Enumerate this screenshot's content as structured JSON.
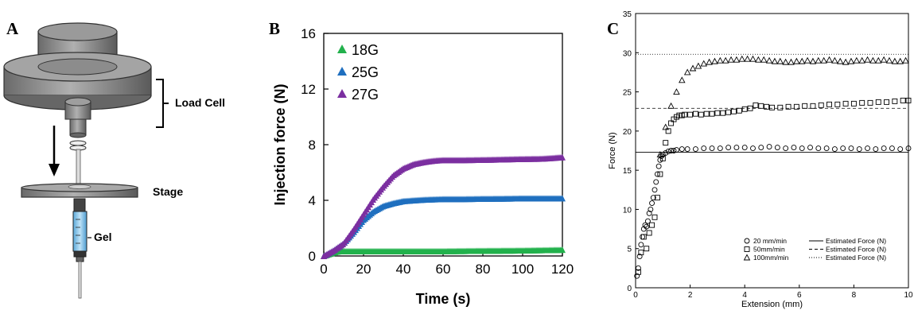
{
  "panels": {
    "a": {
      "letter": "A",
      "labels": {
        "load_cell": "Load Cell",
        "stage": "Stage",
        "gel": "Gel"
      }
    },
    "b": {
      "letter": "B"
    },
    "c": {
      "letter": "C"
    }
  },
  "chart_data": [
    {
      "id": "B",
      "type": "scatter",
      "xlabel": "Time (s)",
      "ylabel": "Injection force (N)",
      "xlim": [
        0,
        120
      ],
      "ylim": [
        0,
        16
      ],
      "xticks": [
        0,
        20,
        40,
        60,
        80,
        100,
        120
      ],
      "yticks": [
        0,
        4,
        8,
        12,
        16
      ],
      "grid": false,
      "legend": "top-left",
      "series": [
        {
          "name": "18G",
          "color": "#22b14c",
          "x": [
            0,
            3,
            6,
            8,
            10,
            20,
            40,
            60,
            80,
            100,
            120
          ],
          "y": [
            0,
            0.15,
            0.3,
            0.35,
            0.35,
            0.35,
            0.35,
            0.35,
            0.38,
            0.4,
            0.45
          ]
        },
        {
          "name": "25G",
          "color": "#1f6fbf",
          "x": [
            0,
            5,
            10,
            15,
            20,
            25,
            30,
            35,
            40,
            50,
            60,
            70,
            80,
            90,
            100,
            110,
            120
          ],
          "y": [
            0,
            0.4,
            0.9,
            1.7,
            2.6,
            3.2,
            3.6,
            3.8,
            3.95,
            4.05,
            4.1,
            4.1,
            4.12,
            4.13,
            4.15,
            4.15,
            4.15
          ]
        },
        {
          "name": "27G",
          "color": "#7b2fa0",
          "x": [
            0,
            5,
            10,
            15,
            20,
            25,
            30,
            35,
            40,
            45,
            50,
            55,
            60,
            70,
            80,
            90,
            100,
            110,
            120
          ],
          "y": [
            0,
            0.4,
            0.9,
            1.9,
            3.0,
            4.1,
            5.0,
            5.8,
            6.3,
            6.6,
            6.75,
            6.85,
            6.9,
            6.9,
            6.92,
            6.95,
            6.98,
            7.0,
            7.1
          ]
        }
      ]
    },
    {
      "id": "C",
      "type": "scatter",
      "xlabel": "Extension (mm)",
      "ylabel": "Force (N)",
      "xlim": [
        0,
        10
      ],
      "ylim": [
        0,
        35
      ],
      "xticks": [
        0,
        2,
        4,
        6,
        8,
        10
      ],
      "yticks": [
        0,
        5,
        10,
        15,
        20,
        25,
        30,
        35
      ],
      "grid": false,
      "legend": "bottom-right",
      "series": [
        {
          "name": "20 mm/min",
          "marker": "circle",
          "estimated_force": 17.3,
          "legend_line": "Estimated Force (N)",
          "line_style": "solid",
          "x": [
            0.05,
            0.1,
            0.15,
            0.2,
            0.25,
            0.3,
            0.35,
            0.4,
            0.45,
            0.5,
            0.55,
            0.6,
            0.65,
            0.7,
            0.75,
            0.8,
            0.85,
            0.9,
            0.95,
            1.0,
            1.1,
            1.2,
            1.3,
            1.4,
            1.5,
            1.7,
            1.9,
            2.2,
            2.5,
            2.8,
            3.1,
            3.4,
            3.7,
            4.0,
            4.3,
            4.6,
            4.9,
            5.2,
            5.5,
            5.8,
            6.1,
            6.4,
            6.7,
            7.0,
            7.3,
            7.6,
            7.9,
            8.2,
            8.5,
            8.8,
            9.1,
            9.4,
            9.7,
            10.0
          ],
          "y": [
            1.5,
            2.5,
            4.0,
            5.5,
            6.5,
            7.5,
            8.0,
            7.8,
            8.5,
            9.5,
            10.0,
            10.8,
            11.5,
            12.5,
            13.5,
            14.5,
            15.5,
            16.3,
            16.8,
            17.0,
            17.2,
            17.4,
            17.5,
            17.5,
            17.6,
            17.7,
            17.7,
            17.7,
            17.8,
            17.8,
            17.8,
            17.9,
            17.9,
            17.9,
            17.8,
            17.9,
            18.0,
            17.9,
            17.8,
            17.9,
            17.8,
            17.9,
            17.8,
            17.8,
            17.7,
            17.8,
            17.8,
            17.7,
            17.8,
            17.7,
            17.8,
            17.8,
            17.7,
            17.8
          ]
        },
        {
          "name": "50mm/min",
          "marker": "square",
          "estimated_force": 22.9,
          "legend_line": "Estimated Force (N)",
          "line_style": "dashed",
          "x": [
            0.1,
            0.2,
            0.3,
            0.4,
            0.5,
            0.6,
            0.7,
            0.8,
            0.9,
            1.0,
            1.1,
            1.2,
            1.3,
            1.4,
            1.5,
            1.6,
            1.7,
            1.8,
            2.0,
            2.2,
            2.4,
            2.6,
            2.8,
            3.0,
            3.2,
            3.4,
            3.6,
            3.8,
            4.0,
            4.2,
            4.4,
            4.6,
            4.8,
            5.0,
            5.3,
            5.6,
            5.9,
            6.2,
            6.5,
            6.8,
            7.1,
            7.4,
            7.7,
            8.0,
            8.3,
            8.6,
            8.9,
            9.2,
            9.5,
            9.8,
            10.0
          ],
          "y": [
            2.0,
            4.5,
            6.5,
            5.0,
            7.0,
            8.0,
            9.0,
            11.5,
            14.5,
            16.5,
            18.5,
            20.0,
            21.0,
            21.5,
            21.8,
            22.0,
            22.0,
            22.1,
            22.1,
            22.2,
            22.1,
            22.2,
            22.2,
            22.3,
            22.3,
            22.4,
            22.5,
            22.6,
            22.8,
            22.9,
            23.3,
            23.2,
            23.1,
            23.0,
            23.0,
            23.1,
            23.1,
            23.2,
            23.2,
            23.3,
            23.4,
            23.4,
            23.5,
            23.5,
            23.6,
            23.6,
            23.7,
            23.7,
            23.8,
            23.9,
            23.9
          ]
        },
        {
          "name": "100mm/min",
          "marker": "triangle",
          "estimated_force": 29.8,
          "legend_line": "Estimated Force (N)",
          "line_style": "dotted",
          "x": [
            0.9,
            1.1,
            1.3,
            1.5,
            1.7,
            1.9,
            2.1,
            2.3,
            2.5,
            2.7,
            2.9,
            3.1,
            3.3,
            3.5,
            3.7,
            3.9,
            4.1,
            4.3,
            4.5,
            4.7,
            4.9,
            5.1,
            5.3,
            5.5,
            5.7,
            5.9,
            6.1,
            6.3,
            6.5,
            6.7,
            6.9,
            7.1,
            7.3,
            7.5,
            7.7,
            7.9,
            8.1,
            8.3,
            8.5,
            8.7,
            8.9,
            9.1,
            9.3,
            9.5,
            9.7,
            9.9
          ],
          "y": [
            17.0,
            20.5,
            23.2,
            25.0,
            26.5,
            27.5,
            28.0,
            28.3,
            28.6,
            28.8,
            28.9,
            29.0,
            29.0,
            29.1,
            29.1,
            29.2,
            29.2,
            29.2,
            29.1,
            29.1,
            29.0,
            28.9,
            28.9,
            28.8,
            28.8,
            28.9,
            28.9,
            29.0,
            28.9,
            29.0,
            29.0,
            29.1,
            29.0,
            28.9,
            28.8,
            28.9,
            29.0,
            29.0,
            29.1,
            29.0,
            29.0,
            29.1,
            29.0,
            28.9,
            28.9,
            29.0
          ]
        }
      ]
    }
  ]
}
